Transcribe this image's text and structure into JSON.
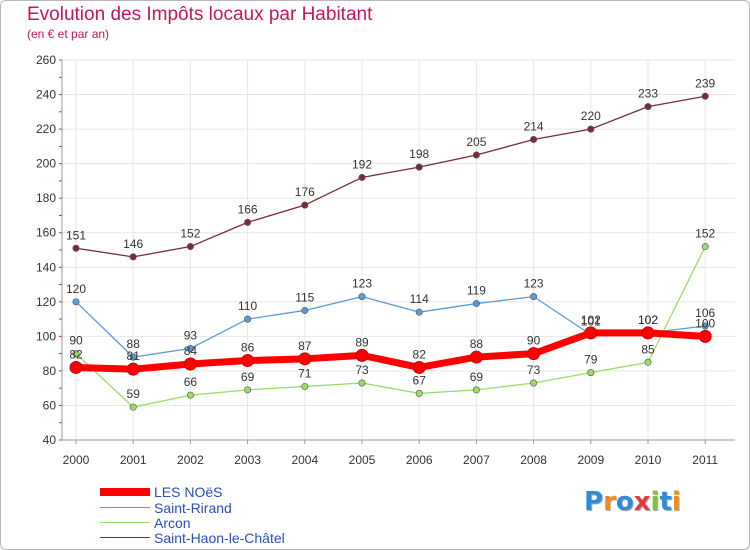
{
  "chart_data": {
    "type": "line",
    "title": "Evolution des Impôts locaux par Habitant",
    "subtitle": "(en € et par an)",
    "xlabel": "",
    "ylabel": "",
    "x": [
      "2000",
      "2001",
      "2002",
      "2003",
      "2004",
      "2005",
      "2006",
      "2007",
      "2008",
      "2009",
      "2010",
      "2011"
    ],
    "ylim": [
      40,
      260
    ],
    "yticks": [
      "40",
      "60",
      "80",
      "100",
      "120",
      "140",
      "160",
      "180",
      "200",
      "220",
      "240",
      "260"
    ],
    "series": [
      {
        "name": "LES NOëS",
        "color": "#ff0000",
        "values": [
          82,
          81,
          84,
          86,
          87,
          89,
          82,
          88,
          90,
          102,
          102,
          100
        ]
      },
      {
        "name": "Saint-Rirand",
        "color": "#5b9bd5",
        "values": [
          120,
          88,
          93,
          110,
          115,
          123,
          114,
          119,
          123,
          101,
          102,
          106
        ]
      },
      {
        "name": "Arcon",
        "color": "#99dd66",
        "values": [
          90,
          59,
          66,
          69,
          71,
          73,
          67,
          69,
          73,
          79,
          85,
          152
        ]
      },
      {
        "name": "Saint-Haon-le-Châtel",
        "color": "#7a2b35",
        "values": [
          151,
          146,
          152,
          166,
          176,
          192,
          198,
          205,
          214,
          220,
          233,
          239
        ]
      }
    ]
  },
  "branding": {
    "logo_letters": [
      "P",
      "r",
      "o",
      "x",
      "i",
      "t",
      "i"
    ],
    "logo_colors": [
      "#2e8bd8",
      "#f08a1c",
      "#2e8bd8",
      "#e23b3b",
      "#7cc242",
      "#2e8bd8",
      "#f08a1c"
    ]
  }
}
